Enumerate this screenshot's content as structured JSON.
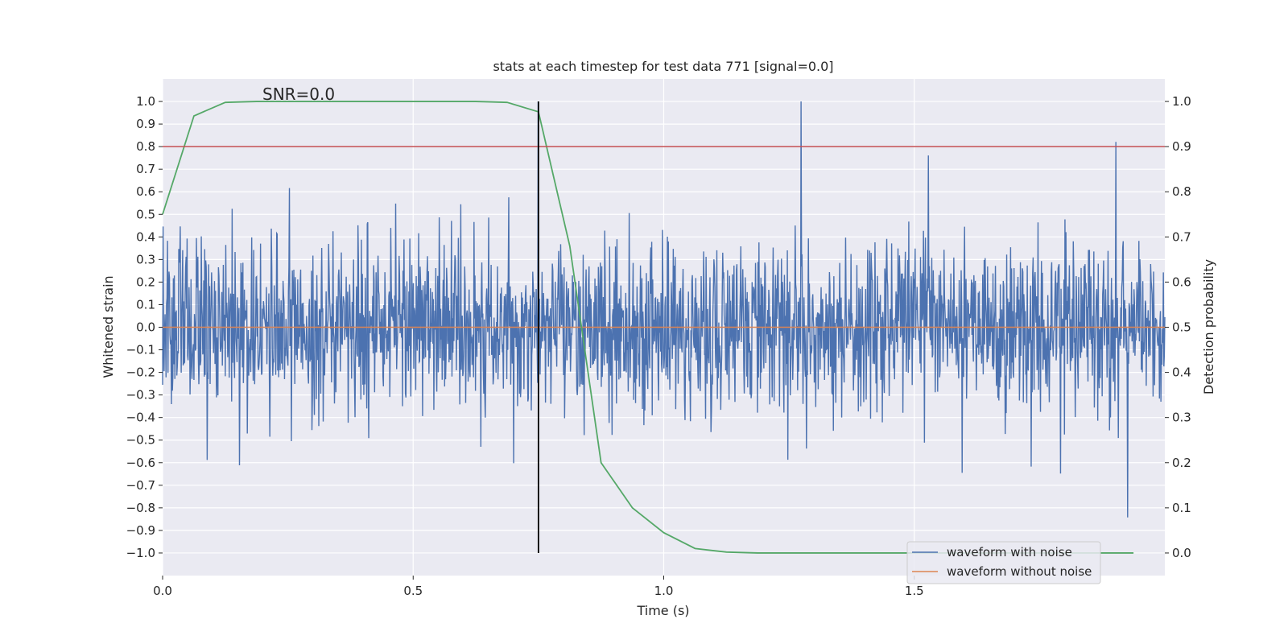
{
  "chart_data": {
    "type": "line",
    "title": "stats at each timestep for test data 771 [signal=0.0]",
    "xlabel": "Time (s)",
    "ylabel_left": "Whitened strain",
    "ylabel_right": "Detection probability",
    "annotation": "SNR=0.0",
    "xlim": [
      0.0,
      2.0
    ],
    "ylim_left": [
      -1.1,
      1.1
    ],
    "ylim_right": [
      -0.05,
      1.05
    ],
    "x_ticks": [
      0.0,
      0.5,
      1.0,
      1.5
    ],
    "x_tick_labels": [
      "0.0",
      "0.5",
      "1.0",
      "1.5"
    ],
    "y_left_ticks": [
      -1.0,
      -0.9,
      -0.8,
      -0.7,
      -0.6,
      -0.5,
      -0.4,
      -0.3,
      -0.2,
      -0.1,
      0.0,
      0.1,
      0.2,
      0.3,
      0.4,
      0.5,
      0.6,
      0.7,
      0.8,
      0.9,
      1.0
    ],
    "y_left_tick_labels": [
      "−1.0",
      "−0.9",
      "−0.8",
      "−0.7",
      "−0.6",
      "−0.5",
      "−0.4",
      "−0.3",
      "−0.2",
      "−0.1",
      "0.0",
      "0.1",
      "0.2",
      "0.3",
      "0.4",
      "0.5",
      "0.6",
      "0.7",
      "0.8",
      "0.9",
      "1.0"
    ],
    "y_right_ticks": [
      0.0,
      0.1,
      0.2,
      0.3,
      0.4,
      0.5,
      0.6,
      0.7,
      0.8,
      0.9,
      1.0
    ],
    "y_right_tick_labels": [
      "0.0",
      "0.1",
      "0.2",
      "0.3",
      "0.4",
      "0.5",
      "0.6",
      "0.7",
      "0.8",
      "0.9",
      "1.0"
    ],
    "threshold_line": {
      "y_right": 0.9,
      "color": "#c44e52"
    },
    "vertical_marker": {
      "x": 0.75,
      "y_range": [
        -1.0,
        1.0
      ],
      "color": "#000000"
    },
    "noise_series": {
      "name": "waveform with noise",
      "color": "#4c72b0",
      "n_samples": 2048,
      "y_range": [
        -1.0,
        1.0
      ],
      "seed": 771
    },
    "clean_series": {
      "name": "waveform without noise",
      "color": "#dd8452",
      "x": [
        0.0,
        2.0
      ],
      "y": [
        0.0,
        0.0
      ]
    },
    "probability_series": {
      "name": "detection probability",
      "color": "#55a868",
      "x": [
        0.0,
        0.0625,
        0.125,
        0.1875,
        0.25,
        0.3125,
        0.375,
        0.4375,
        0.5,
        0.5625,
        0.625,
        0.6875,
        0.75,
        0.8125,
        0.875,
        0.9375,
        1.0,
        1.0625,
        1.125,
        1.1875,
        1.25,
        1.3125,
        1.375,
        1.4375,
        1.5,
        1.5625,
        1.625,
        1.6875,
        1.75,
        1.8125,
        1.875,
        1.9375
      ],
      "y": [
        0.75,
        0.968,
        0.998,
        1.0,
        1.0,
        1.0,
        1.0,
        1.0,
        1.0,
        1.0,
        1.0,
        0.998,
        0.977,
        0.68,
        0.2,
        0.1,
        0.045,
        0.01,
        0.002,
        0.0,
        0.0,
        0.0,
        0.0,
        0.0,
        0.0,
        0.0,
        0.0,
        0.0,
        0.0,
        0.0,
        0.0,
        0.0
      ]
    },
    "legend": {
      "placement": "lower-right",
      "entries": [
        {
          "label": "waveform with noise",
          "color": "#4c72b0"
        },
        {
          "label": "waveform without noise",
          "color": "#dd8452"
        }
      ]
    },
    "style": {
      "plot_bg": "#eaeaf2",
      "grid": true,
      "grid_color": "#ffffff"
    }
  }
}
